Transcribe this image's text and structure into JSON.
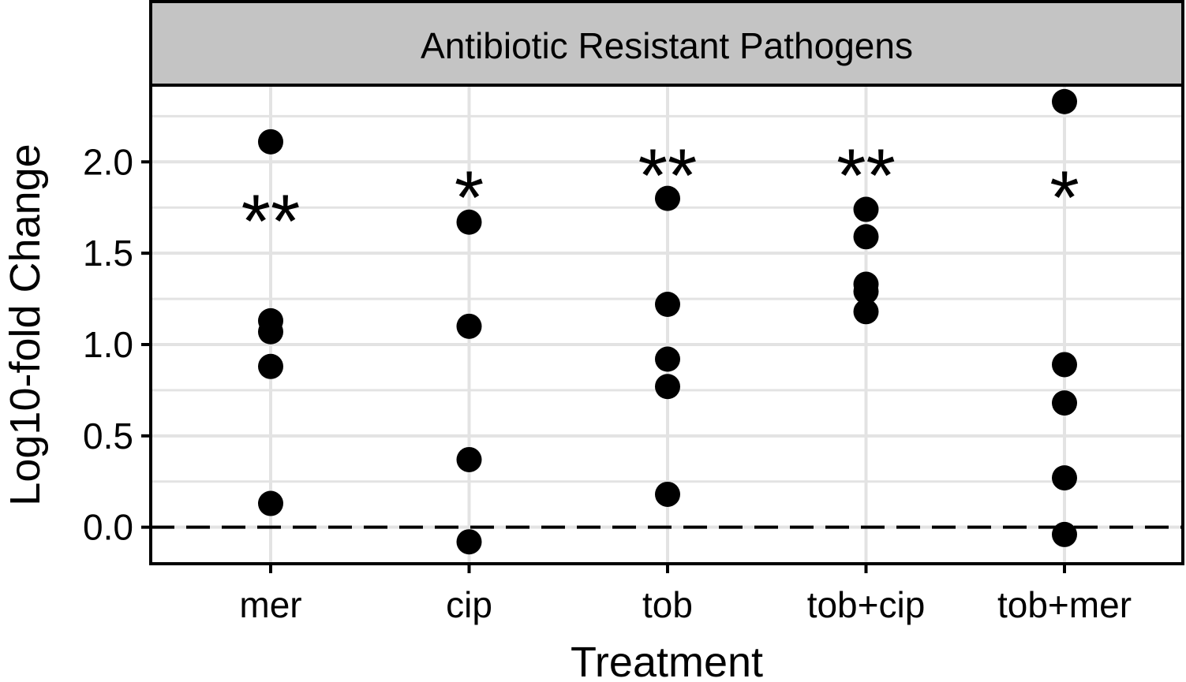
{
  "chart_data": {
    "type": "scatter",
    "title": "",
    "facet_label": "Antibiotic Resistant Pathogens",
    "xlabel": "Treatment",
    "ylabel": "Log10-fold Change",
    "ylim": [
      -0.2,
      2.42
    ],
    "yticks": [
      0.0,
      0.5,
      1.0,
      1.5,
      2.0
    ],
    "ytick_labels": [
      "0.0",
      "0.5",
      "1.0",
      "1.5",
      "2.0"
    ],
    "grid": true,
    "reference_line": {
      "y": 0.0,
      "style": "dashed"
    },
    "categories": [
      "mer",
      "cip",
      "tob",
      "tob+cip",
      "tob+mer"
    ],
    "points": [
      {
        "category": "mer",
        "values": [
          2.11,
          1.13,
          1.07,
          0.88,
          0.13
        ]
      },
      {
        "category": "cip",
        "values": [
          1.67,
          1.1,
          0.37,
          -0.08
        ]
      },
      {
        "category": "tob",
        "values": [
          1.8,
          1.22,
          0.92,
          0.77,
          0.18
        ]
      },
      {
        "category": "tob+cip",
        "values": [
          1.74,
          1.59,
          1.33,
          1.29,
          1.18
        ]
      },
      {
        "category": "tob+mer",
        "values": [
          2.33,
          0.89,
          0.68,
          0.27,
          -0.04
        ]
      }
    ],
    "annotations": [
      {
        "category": "mer",
        "text": "**",
        "y": 1.8
      },
      {
        "category": "cip",
        "text": "*",
        "y": 1.93
      },
      {
        "category": "tob",
        "text": "**",
        "y": 2.05
      },
      {
        "category": "tob+cip",
        "text": "**",
        "y": 2.05
      },
      {
        "category": "tob+mer",
        "text": "*",
        "y": 1.93
      }
    ],
    "point_color": "#000000",
    "strip_color": "#c4c4c4",
    "grid_color": "#e3e3e3"
  }
}
